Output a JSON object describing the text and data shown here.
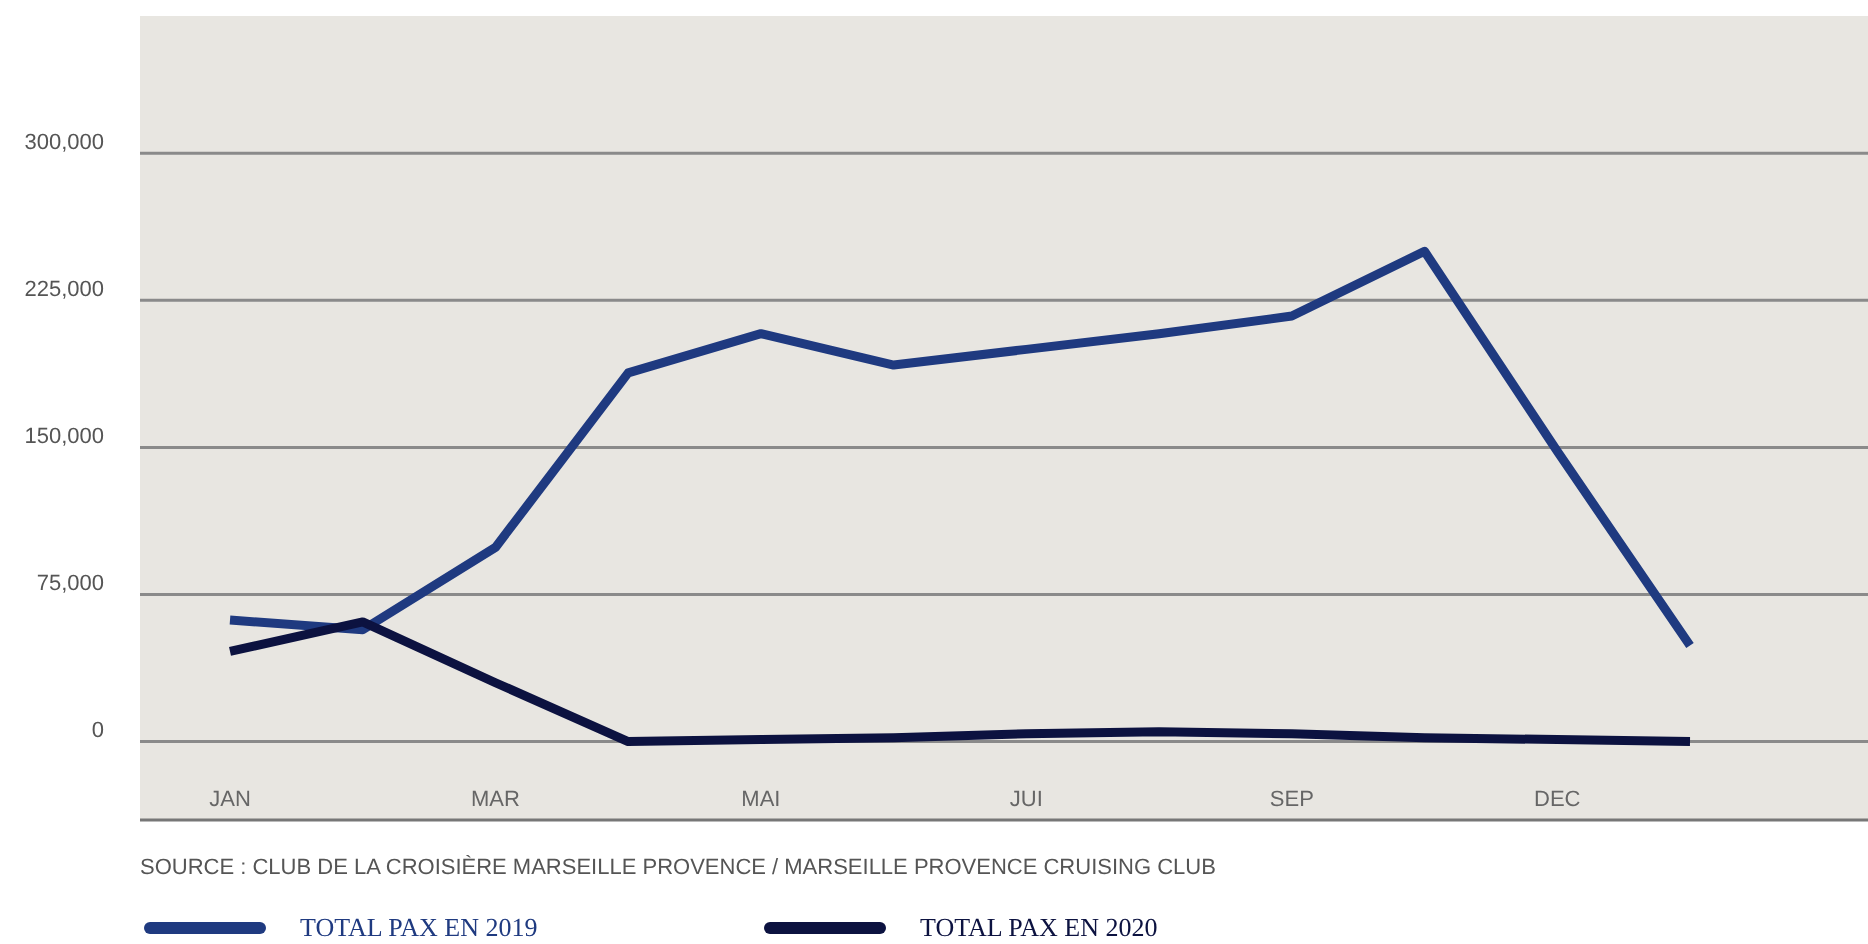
{
  "chart_data": {
    "type": "line",
    "categories": [
      "JAN",
      null,
      "MAR",
      null,
      "MAI",
      null,
      "JUI",
      null,
      "SEP",
      null,
      "DEC",
      null
    ],
    "series": [
      {
        "name": "TOTAL PAX EN 2019",
        "color": "#1f3a80",
        "values": [
          62000,
          57000,
          99000,
          188000,
          208000,
          192000,
          200000,
          208000,
          217000,
          250000,
          148000,
          49000
        ]
      },
      {
        "name": "TOTAL PAX EN 2020",
        "color": "#0c1240",
        "values": [
          46000,
          61000,
          30000,
          0,
          1000,
          2000,
          4000,
          5000,
          4000,
          2000,
          1000,
          0
        ]
      }
    ],
    "ylim": [
      -40000,
      370000
    ],
    "yticks": [
      {
        "value": 0,
        "label": "0"
      },
      {
        "value": 75000,
        "label": "75,000"
      },
      {
        "value": 150000,
        "label": "150,000"
      },
      {
        "value": 225000,
        "label": "225,000"
      },
      {
        "value": 300000,
        "label": "300,000"
      }
    ],
    "grid": "y",
    "legend": "bottom",
    "line_style": "solid",
    "marker": "none",
    "annotations": [
      "SOURCE : CLUB DE LA CROISIÈRE MARSEILLE PROVENCE / MARSEILLE PROVENCE CRUISING CLUB"
    ]
  }
}
